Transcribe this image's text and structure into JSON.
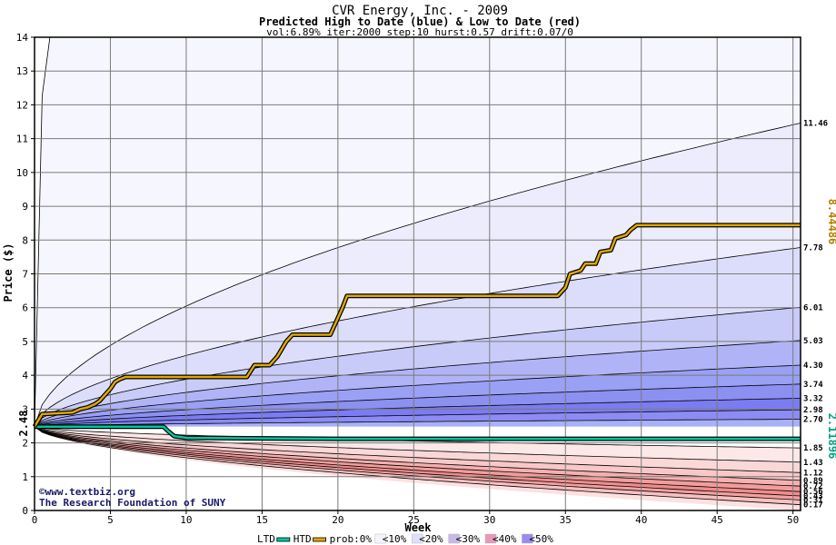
{
  "chart_data": {
    "type": "area",
    "title": "CVR Energy, Inc. - 2009",
    "subtitle": "Predicted High to Date (blue) &  Low to Date (red)",
    "params": "vol:6.89% iter:2000 step:10 hurst:0.57 drift:0.07/0",
    "xlabel": "Week",
    "ylabel": "Price ($)",
    "xlim": [
      0,
      50.5
    ],
    "ylim": [
      0,
      14
    ],
    "x_ticks": [
      0,
      5,
      10,
      15,
      20,
      25,
      30,
      35,
      40,
      45,
      50
    ],
    "y_ticks": [
      0,
      1,
      2,
      3,
      4,
      5,
      6,
      7,
      8,
      9,
      10,
      11,
      12,
      13,
      14
    ],
    "grid": true,
    "start_price": 2.48,
    "start_price_label": "2.48",
    "high_bands_end": [
      2.7,
      2.98,
      3.32,
      3.74,
      4.3,
      5.03,
      6.01,
      7.78,
      11.46
    ],
    "high_band_labels": [
      "2.70",
      "2.98",
      "3.32",
      "3.74",
      "4.30",
      "5.03",
      "6.01",
      "7.78",
      "11.46"
    ],
    "low_bands_end": [
      1.85,
      1.43,
      1.12,
      0.89,
      0.72,
      0.56,
      0.43,
      0.31,
      0.17
    ],
    "low_band_labels": [
      "1.85",
      "1.43",
      "1.12",
      "0.89",
      "0.72",
      "0.56",
      "0.43",
      "0.31",
      "0.17"
    ],
    "htd_series": {
      "name": "HTD",
      "color": "#e0a800",
      "end_label": "8.44486",
      "points": [
        [
          0,
          2.48
        ],
        [
          0.5,
          2.85
        ],
        [
          2.5,
          2.9
        ],
        [
          3,
          3.0
        ],
        [
          3.5,
          3.05
        ],
        [
          4,
          3.15
        ],
        [
          4.3,
          3.25
        ],
        [
          4.6,
          3.4
        ],
        [
          5,
          3.6
        ],
        [
          5.3,
          3.8
        ],
        [
          5.6,
          3.88
        ],
        [
          6,
          3.95
        ],
        [
          14,
          3.95
        ],
        [
          14.5,
          4.3
        ],
        [
          15.5,
          4.3
        ],
        [
          16,
          4.55
        ],
        [
          16.6,
          5.0
        ],
        [
          17,
          5.2
        ],
        [
          19.5,
          5.2
        ],
        [
          20,
          5.7
        ],
        [
          20.3,
          6.0
        ],
        [
          20.6,
          6.35
        ],
        [
          34.5,
          6.35
        ],
        [
          35,
          6.6
        ],
        [
          35.3,
          7.0
        ],
        [
          36,
          7.1
        ],
        [
          36.3,
          7.3
        ],
        [
          37,
          7.3
        ],
        [
          37.3,
          7.65
        ],
        [
          38,
          7.7
        ],
        [
          38.3,
          8.05
        ],
        [
          39,
          8.15
        ],
        [
          39.3,
          8.3
        ],
        [
          39.7,
          8.44
        ],
        [
          50.5,
          8.44
        ]
      ]
    },
    "ltd_series": {
      "name": "LTD",
      "color": "#00c8a0",
      "end_label": "2.11896",
      "points": [
        [
          0,
          2.48
        ],
        [
          8.5,
          2.48
        ],
        [
          8.8,
          2.35
        ],
        [
          9.2,
          2.2
        ],
        [
          10,
          2.15
        ],
        [
          13,
          2.14
        ],
        [
          20,
          2.12
        ],
        [
          50.5,
          2.12
        ]
      ]
    },
    "legend": {
      "placement": "bottom",
      "items": [
        {
          "label": "LTD",
          "color": "#00c8a0",
          "kind": "line"
        },
        {
          "label": "HTD",
          "color": "#e0a800",
          "kind": "line"
        },
        {
          "label": "prob:0%",
          "color": "#ffffff",
          "kind": "text-only"
        },
        {
          "label": "<10%",
          "color": "#f4f4ff",
          "kind": "swatch"
        },
        {
          "label": "<20%",
          "color": "#dedff8",
          "kind": "swatch"
        },
        {
          "label": "<30%",
          "color": "#c8b8e8",
          "kind": "swatch"
        },
        {
          "label": "<40%",
          "color": "#e898b8",
          "kind": "swatch"
        },
        {
          "label": "<50%",
          "color": "#9a8af0",
          "kind": "swatch"
        }
      ]
    },
    "watermark_lines": [
      "©www.textbiz.org",
      "The Research Foundation of SUNY"
    ]
  }
}
